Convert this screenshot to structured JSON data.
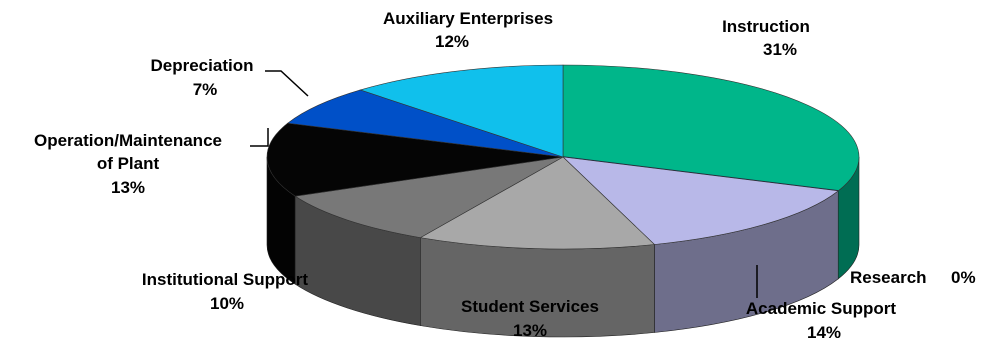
{
  "chart_data": {
    "type": "pie",
    "style": "3d",
    "title": "",
    "slices": [
      {
        "label": "Instruction",
        "value_label": "31%",
        "value": 31,
        "color": "#00b68a"
      },
      {
        "label": "Research",
        "value_label": "0%",
        "value": 0,
        "color": "#1b2a4a"
      },
      {
        "label": "Academic Support",
        "value_label": "14%",
        "value": 14,
        "color": "#b8b8e8"
      },
      {
        "label": "Student Services",
        "value_label": "13%",
        "value": 13,
        "color": "#a8a8a8"
      },
      {
        "label": "Institutional Support",
        "value_label": "10%",
        "value": 10,
        "color": "#787878"
      },
      {
        "label": "Operation/Maintenance of Plant",
        "label_lines": [
          "Operation/Maintenance",
          "of Plant"
        ],
        "value_label": "13%",
        "value": 13,
        "color": "#050505"
      },
      {
        "label": "Depreciation",
        "value_label": "7%",
        "value": 7,
        "color": "#0050c8"
      },
      {
        "label": "Auxiliary Enterprises",
        "value_label": "12%",
        "value": 12,
        "color": "#10c0ec"
      }
    ]
  }
}
